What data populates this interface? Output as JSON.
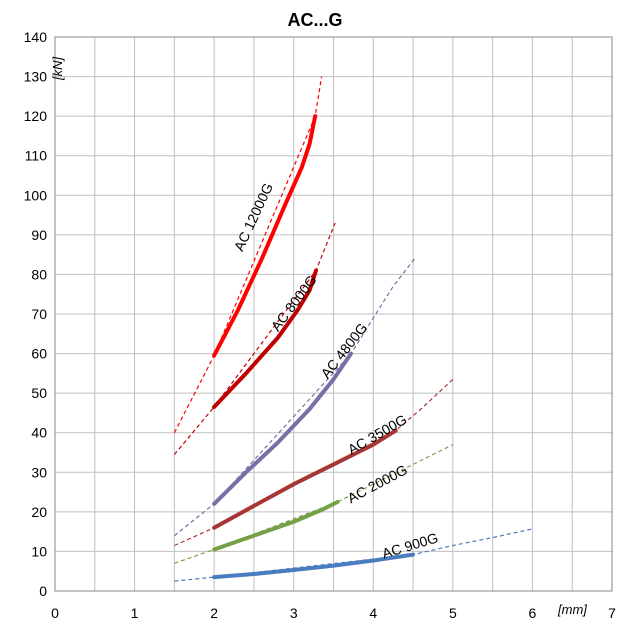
{
  "chart_data": {
    "type": "line",
    "title": "AC...G",
    "xlabel": "[mm]",
    "ylabel": "[kN]",
    "xlim": [
      0,
      7
    ],
    "ylim": [
      0,
      140
    ],
    "x_ticks": [
      "0",
      "1",
      "2",
      "3",
      "4",
      "5",
      "6",
      "7"
    ],
    "y_ticks": [
      "0",
      "10",
      "20",
      "30",
      "40",
      "50",
      "60",
      "70",
      "80",
      "90",
      "100",
      "110",
      "120",
      "130",
      "140"
    ],
    "grid": true,
    "series": [
      {
        "name": "AC 12000G",
        "color": "#ff0000",
        "solid": [
          [
            2.0,
            59.5
          ],
          [
            2.3,
            71
          ],
          [
            2.6,
            84
          ],
          [
            2.9,
            98
          ],
          [
            3.1,
            107
          ],
          [
            3.2,
            113
          ],
          [
            3.27,
            120
          ]
        ],
        "dashed": [
          [
            1.5,
            40
          ],
          [
            2.0,
            59.5
          ],
          [
            2.0,
            59.5
          ],
          [
            3.27,
            120
          ],
          [
            3.35,
            130
          ]
        ]
      },
      {
        "name": "AC 8000G",
        "color": "#c00000",
        "solid": [
          [
            2.0,
            46.5
          ],
          [
            2.4,
            55
          ],
          [
            2.8,
            64
          ],
          [
            3.05,
            71
          ],
          [
            3.2,
            76
          ],
          [
            3.28,
            81
          ]
        ],
        "dashed": [
          [
            1.5,
            34.5
          ],
          [
            2.0,
            46.5
          ],
          [
            3.28,
            81
          ],
          [
            3.52,
            93
          ]
        ]
      },
      {
        "name": "AC 4800G",
        "color": "#7470a8",
        "solid": [
          [
            2.0,
            22
          ],
          [
            2.4,
            30
          ],
          [
            2.8,
            37.5
          ],
          [
            3.2,
            46
          ],
          [
            3.5,
            53.5
          ],
          [
            3.72,
            60
          ]
        ],
        "dashed": [
          [
            1.5,
            14
          ],
          [
            2.0,
            22
          ],
          [
            3.72,
            60
          ],
          [
            4.0,
            69
          ],
          [
            4.25,
            77
          ],
          [
            4.52,
            84
          ]
        ]
      },
      {
        "name": "AC 3500G",
        "color": "#a73535",
        "solid": [
          [
            2.0,
            16
          ],
          [
            2.5,
            21.5
          ],
          [
            3.0,
            27
          ],
          [
            3.5,
            32
          ],
          [
            4.0,
            37
          ],
          [
            4.28,
            40.5
          ]
        ],
        "dashed": [
          [
            1.5,
            11.5
          ],
          [
            2.0,
            16
          ],
          [
            4.28,
            40.5
          ],
          [
            4.6,
            46
          ],
          [
            5.0,
            53.5
          ]
        ]
      },
      {
        "name": "AC 2000G",
        "color": "#77a046",
        "solid": [
          [
            2.0,
            10.5
          ],
          [
            2.5,
            14
          ],
          [
            3.0,
            17.5
          ],
          [
            3.35,
            20.5
          ],
          [
            3.55,
            22.5
          ]
        ],
        "dashed": [
          [
            1.5,
            7
          ],
          [
            2.0,
            10.5
          ],
          [
            3.55,
            22.5
          ],
          [
            4.0,
            27
          ],
          [
            4.5,
            32
          ],
          [
            5.0,
            37
          ]
        ]
      },
      {
        "name": "AC 900G",
        "color": "#4a7cc0",
        "solid": [
          [
            2.0,
            3.5
          ],
          [
            2.5,
            4.3
          ],
          [
            3.0,
            5.3
          ],
          [
            3.5,
            6.4
          ],
          [
            4.0,
            7.7
          ],
          [
            4.5,
            9.2
          ]
        ],
        "dashed": [
          [
            1.5,
            2.5
          ],
          [
            2.0,
            3.5
          ],
          [
            4.5,
            9.2
          ],
          [
            5.0,
            11.5
          ],
          [
            5.5,
            13.5
          ],
          [
            6.0,
            15.7
          ]
        ]
      }
    ]
  }
}
